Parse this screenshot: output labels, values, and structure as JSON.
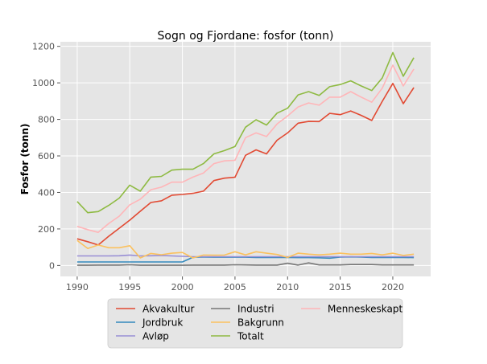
{
  "chart_data": {
    "type": "line",
    "title": "Sogn og Fjordane: fosfor (tonn)",
    "xlabel": "",
    "ylabel": "Fosfor (tonn)",
    "xlim": [
      1988.4,
      2023.6
    ],
    "ylim": [
      -60,
      1225
    ],
    "grid": true,
    "legend_position": "bottom-outside",
    "x_ticks": [
      1990,
      1995,
      2000,
      2005,
      2010,
      2015,
      2020
    ],
    "y_ticks": [
      0,
      200,
      400,
      600,
      800,
      1000,
      1200
    ],
    "x": [
      1990,
      1991,
      1992,
      1993,
      1994,
      1995,
      1996,
      1997,
      1998,
      1999,
      2000,
      2001,
      2002,
      2003,
      2004,
      2005,
      2006,
      2007,
      2008,
      2009,
      2010,
      2011,
      2012,
      2013,
      2014,
      2015,
      2016,
      2017,
      2018,
      2019,
      2020,
      2021,
      2022
    ],
    "series": [
      {
        "name": "Akvakultur",
        "color": "#E24A33",
        "values": [
          146,
          130,
          112,
          160,
          204,
          248,
          297,
          345,
          354,
          385,
          389,
          395,
          407,
          465,
          478,
          483,
          603,
          633,
          611,
          686,
          726,
          779,
          789,
          788,
          833,
          826,
          846,
          822,
          794,
          899,
          997,
          886,
          974
        ]
      },
      {
        "name": "Jordbruk",
        "color": "#348ABD",
        "values": [
          19,
          19,
          19,
          19,
          19,
          19,
          19,
          19,
          19,
          19,
          19,
          45,
          46,
          45,
          46,
          45,
          45,
          44,
          44,
          44,
          44,
          43,
          43,
          42,
          40,
          46,
          47,
          46,
          44,
          44,
          44,
          44,
          43
        ]
      },
      {
        "name": "Avløp",
        "color": "#988ED5",
        "values": [
          52,
          52,
          52,
          52,
          53,
          57,
          52,
          53,
          55,
          52,
          50,
          48,
          48,
          48,
          48,
          48,
          48,
          48,
          48,
          48,
          48,
          48,
          48,
          48,
          48,
          48,
          48,
          48,
          48,
          48,
          48,
          48,
          48
        ]
      },
      {
        "name": "Industri",
        "color": "#777777",
        "values": [
          1,
          1,
          2,
          2,
          2,
          4,
          1,
          1,
          1,
          1,
          1,
          2,
          2,
          2,
          2,
          4,
          3,
          2,
          2,
          2,
          12,
          2,
          14,
          3,
          3,
          3,
          5,
          5,
          5,
          3,
          3,
          3,
          3
        ]
      },
      {
        "name": "Bakgrunn",
        "color": "#FBC15E",
        "values": [
          137,
          93,
          112,
          97,
          97,
          108,
          41,
          66,
          59,
          67,
          71,
          41,
          57,
          56,
          57,
          75,
          58,
          75,
          67,
          60,
          44,
          67,
          62,
          58,
          62,
          67,
          62,
          62,
          66,
          58,
          67,
          55,
          62
        ]
      },
      {
        "name": "Totalt",
        "color": "#8EBA42",
        "values": [
          350,
          289,
          295,
          329,
          369,
          440,
          407,
          484,
          488,
          522,
          527,
          527,
          558,
          611,
          629,
          651,
          757,
          798,
          769,
          834,
          861,
          934,
          952,
          931,
          979,
          991,
          1011,
          983,
          958,
          1027,
          1166,
          1036,
          1138
        ]
      },
      {
        "name": "Menneskeskapt",
        "color": "#FFB5B8",
        "values": [
          214,
          196,
          181,
          230,
          270,
          332,
          363,
          415,
          429,
          456,
          456,
          484,
          506,
          558,
          573,
          576,
          700,
          726,
          706,
          775,
          819,
          868,
          890,
          878,
          922,
          922,
          952,
          922,
          894,
          971,
          1097,
          983,
          1076
        ]
      }
    ]
  }
}
